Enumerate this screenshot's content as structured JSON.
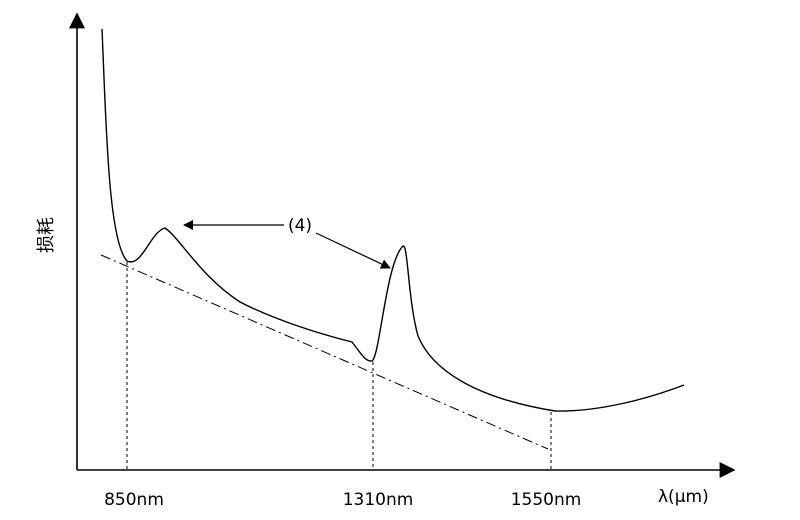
{
  "axes": {
    "x_label": "λ(μm)",
    "y_label": "损耗"
  },
  "ticks": [
    {
      "label": "850nm"
    },
    {
      "label": "1310nm"
    },
    {
      "label": "1550nm"
    }
  ],
  "annotation": {
    "label": "(4)"
  }
}
